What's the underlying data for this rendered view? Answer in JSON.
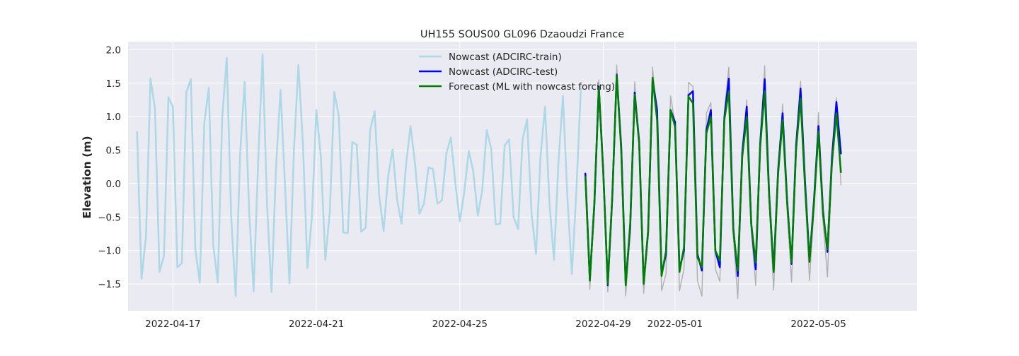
{
  "chart_data": {
    "type": "line",
    "title": "UH155 SOUS00 GL096 Dzaoudzi France",
    "xlabel": "",
    "ylabel": "Elevation (m)",
    "x_range": [
      "2022-04-15 18:00",
      "2022-05-07 18:00"
    ],
    "ylim": [
      -1.9,
      2.12
    ],
    "grid": true,
    "legend_position": "top-center",
    "x_ticks": [
      "2022-04-17",
      "2022-04-21",
      "2022-04-25",
      "2022-04-29",
      "2022-05-01",
      "2022-05-05"
    ],
    "y_ticks": [
      "2.0",
      "1.5",
      "1.0",
      "0.5",
      "0.0",
      "−0.5",
      "−1.0",
      "−1.5"
    ],
    "colors": {
      "background": "#eaeaf2",
      "grid": "#ffffff",
      "train": "#add8e6",
      "test": "#0000ff",
      "forecast": "#008000",
      "reference": "#b0b0b0"
    },
    "series": [
      {
        "name": "Nowcast (ADCIRC-train)",
        "color": "#add8e6",
        "start": "2022-04-16 00:00",
        "step_hours": 3,
        "values": [
          0.77,
          -1.42,
          -0.78,
          1.57,
          1.12,
          -1.32,
          -1.08,
          1.29,
          1.14,
          -1.25,
          -1.19,
          1.37,
          1.56,
          -0.98,
          -1.48,
          0.9,
          1.43,
          -0.92,
          -1.48,
          0.98,
          1.88,
          -0.5,
          -1.68,
          0.45,
          1.52,
          -0.41,
          -1.61,
          0.3,
          1.93,
          -0.32,
          -1.62,
          0.25,
          1.4,
          -0.02,
          -1.49,
          0.52,
          1.77,
          0.6,
          -1.26,
          -0.5,
          1.1,
          0.4,
          -1.14,
          -0.42,
          1.37,
          1.01,
          -0.73,
          -0.74,
          0.62,
          0.58,
          -0.72,
          -0.66,
          0.8,
          1.08,
          -0.17,
          -0.71,
          0.1,
          0.51,
          -0.24,
          -0.6,
          0.28,
          0.86,
          0.3,
          -0.45,
          -0.3,
          0.24,
          0.22,
          -0.3,
          -0.25,
          0.45,
          0.69,
          0.0,
          -0.56,
          -0.12,
          0.49,
          0.18,
          -0.48,
          -0.1,
          0.8,
          0.52,
          -0.61,
          -0.6,
          0.57,
          0.66,
          -0.5,
          -0.68,
          0.66,
          0.96,
          -0.45,
          -1.05,
          0.4,
          1.15,
          -0.3,
          -1.14,
          0.32,
          1.31,
          -0.22,
          -1.35,
          -0.1,
          1.42
        ]
      },
      {
        "name": "Nowcast (ADCIRC-test)",
        "color": "#0000ff",
        "start": "2022-04-28 12:00",
        "step_hours": 3,
        "values": [
          0.15,
          -1.43,
          -0.33,
          1.45,
          0.18,
          -1.52,
          -0.22,
          1.63,
          0.55,
          -1.48,
          -0.66,
          1.36,
          0.63,
          -1.48,
          -0.72,
          1.56,
          1.1,
          -1.36,
          -1.05,
          1.1,
          0.92,
          -1.28,
          -1.0,
          1.32,
          1.38,
          -1.05,
          -1.3,
          0.8,
          1.1,
          -1.0,
          -1.25,
          0.98,
          1.57,
          -0.66,
          -1.38,
          0.46,
          1.15,
          -0.6,
          -1.28,
          0.6,
          1.56,
          -0.16,
          -1.3,
          0.2,
          1.05,
          -0.24,
          -1.2,
          0.56,
          1.42,
          0.03,
          -1.15,
          -0.25,
          0.86,
          -0.4,
          -1.02,
          0.38,
          1.22,
          0.45
        ]
      },
      {
        "name": "Forecast (ML with nowcast forcing)",
        "color": "#008000",
        "start": "2022-04-28 12:00",
        "step_hours": 3,
        "values": [
          0.1,
          -1.45,
          -0.3,
          1.43,
          0.15,
          -1.5,
          -0.2,
          1.62,
          0.5,
          -1.52,
          -0.6,
          1.33,
          0.6,
          -1.5,
          -0.7,
          1.58,
          0.95,
          -1.38,
          -1.0,
          1.1,
          0.85,
          -1.32,
          -0.95,
          1.3,
          1.2,
          -1.1,
          -1.25,
          0.75,
          1.0,
          -1.0,
          -1.15,
          0.95,
          1.38,
          -0.7,
          -1.3,
          0.4,
          1.0,
          -0.6,
          -1.18,
          0.55,
          1.38,
          -0.2,
          -1.32,
          0.15,
          0.95,
          -0.28,
          -1.18,
          0.5,
          1.27,
          -0.05,
          -1.17,
          -0.3,
          0.78,
          -0.45,
          -0.98,
          0.3,
          1.05,
          0.17
        ]
      },
      {
        "color": "#b0b0b0",
        "start": "2022-04-28 12:00",
        "step_hours": 3,
        "values": [
          0.05,
          -1.58,
          -0.35,
          1.55,
          0.1,
          -1.62,
          -0.25,
          1.77,
          0.4,
          -1.68,
          -0.75,
          1.52,
          0.55,
          -1.64,
          -0.8,
          1.74,
          0.95,
          -1.6,
          -1.35,
          1.31,
          0.9,
          -1.6,
          -1.28,
          1.51,
          1.45,
          -1.45,
          -1.68,
          1.05,
          1.21,
          -1.28,
          -1.46,
          1.07,
          1.74,
          -0.8,
          -1.72,
          0.35,
          1.25,
          -0.7,
          -1.52,
          0.45,
          1.76,
          -0.25,
          -1.59,
          0.05,
          1.19,
          -0.4,
          -1.47,
          0.4,
          1.53,
          -0.1,
          -1.45,
          -0.4,
          1.06,
          -0.55,
          -1.39,
          0.2,
          1.28,
          -0.02
        ]
      }
    ]
  }
}
